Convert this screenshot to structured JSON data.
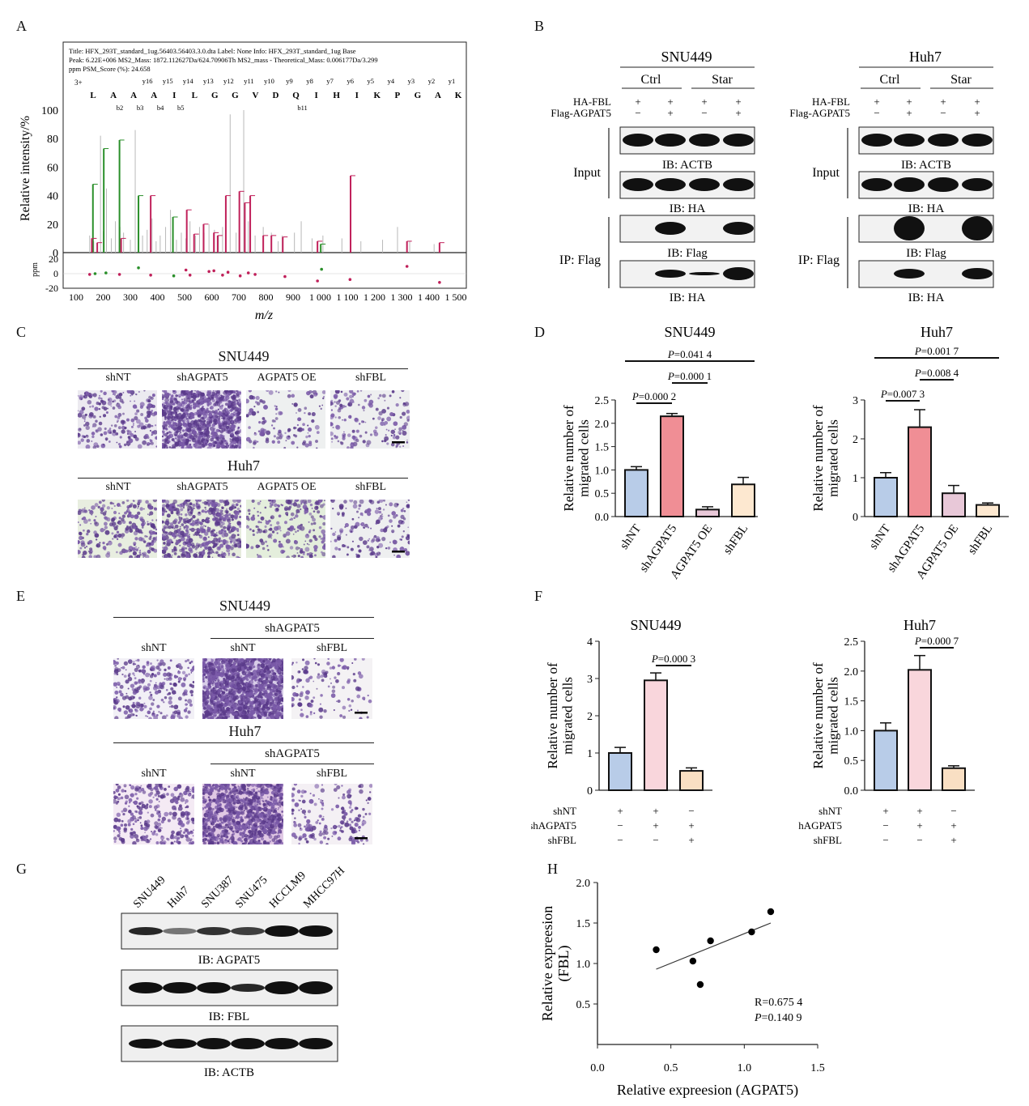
{
  "panels": {
    "A": "A",
    "B": "B",
    "C": "C",
    "D": "D",
    "E": "E",
    "F": "F",
    "G": "G",
    "H": "H"
  },
  "colors": {
    "shNT": "#b8cce8",
    "shAGPAT5": "#f08e95",
    "shAGPAT5_F": "#f9d6dc",
    "AGPAT5OE": "#e8c8d8",
    "shFBL": "#fde8d0",
    "shFBL_F": "#f9dfc3",
    "green": "#2a8f2a",
    "magenta": "#c0205a"
  },
  "A": {
    "info": [
      "Title: HFX_293T_standard_1ug.56403.56403.3.0.dta   Label: None   Info: HFX_293T_standard_1ug   Base",
      "Peak: 6.22E+006   MS2_Mass: 1872.112627Da/624.70906Th   MS2_mass - Theoretical_Mass: 0.006177Da/3.299",
      "ppm    PSM_Score (%): 24.658"
    ],
    "charge": "3+",
    "sequence": [
      "L",
      "A",
      "A",
      "A",
      "I",
      "L",
      "G",
      "G",
      "V",
      "D",
      "Q",
      "I",
      "H",
      "I",
      "K",
      "P",
      "G",
      "A",
      "K"
    ],
    "y_ions": [
      "y16",
      "y15",
      "y14",
      "y13",
      "y12",
      "y11",
      "y10",
      "y9",
      "y8",
      "y7",
      "y6",
      "y5",
      "y4",
      "y3",
      "y2",
      "y1"
    ],
    "b_ions": [
      "b2",
      "b3",
      "b4",
      "b5",
      "b11"
    ],
    "ylabel": "Relative intensity/%",
    "ppm_label": "ppm",
    "xlabel": "m/z",
    "yticks": [
      "0",
      "20",
      "40",
      "60",
      "80",
      "100"
    ],
    "ppm_ticks": [
      "20",
      "0",
      "-20"
    ],
    "xticks": [
      "100",
      "200",
      "300",
      "400",
      "500",
      "600",
      "700",
      "800",
      "900",
      "1 000",
      "1 100",
      "1 200",
      "1 300",
      "1 400",
      "1 500"
    ]
  },
  "B": {
    "left": {
      "title": "SNU449",
      "groups": [
        "Ctrl",
        "Star"
      ],
      "rows": [
        {
          "label": "HA-FBL",
          "vals": [
            "+",
            "+",
            "+",
            "+"
          ]
        },
        {
          "label": "Flag-AGPAT5",
          "vals": [
            "−",
            "+",
            "−",
            "+"
          ]
        }
      ],
      "blots": [
        "IB: ACTB",
        "IB: HA",
        "IB: Flag",
        "IB: HA"
      ],
      "sections": [
        "Input",
        "IP: Flag"
      ]
    },
    "right": {
      "title": "Huh7",
      "groups": [
        "Ctrl",
        "Star"
      ],
      "rows": [
        {
          "label": "HA-FBL",
          "vals": [
            "+",
            "+",
            "+",
            "+"
          ]
        },
        {
          "label": "Flag-AGPAT5",
          "vals": [
            "−",
            "+",
            "−",
            "+"
          ]
        }
      ],
      "blots": [
        "IB: ACTB",
        "IB: HA",
        "IB: Flag",
        "IB: HA"
      ],
      "sections": [
        "Input",
        "IP: Flag"
      ]
    }
  },
  "C": {
    "rows": [
      {
        "cell": "SNU449",
        "conds": [
          "shNT",
          "shAGPAT5",
          "AGPAT5 OE",
          "shFBL"
        ]
      },
      {
        "cell": "Huh7",
        "conds": [
          "shNT",
          "shAGPAT5",
          "AGPAT5 OE",
          "shFBL"
        ]
      }
    ]
  },
  "E": {
    "rows": [
      {
        "cell": "SNU449",
        "group": "shAGPAT5",
        "conds": [
          "shNT",
          "shNT",
          "shFBL"
        ]
      },
      {
        "cell": "Huh7",
        "group": "shAGPAT5",
        "conds": [
          "shNT",
          "shNT",
          "shFBL"
        ]
      }
    ]
  },
  "G": {
    "lanes": [
      "SNU449",
      "Huh7",
      "SNU387",
      "SNU475",
      "HCCLM9",
      "MHCC97H"
    ],
    "blots": [
      "IB: AGPAT5",
      "IB: FBL",
      "IB: ACTB"
    ]
  },
  "chart_data": [
    {
      "type": "bar",
      "panel": "D",
      "title": "SNU449",
      "categories": [
        "shNT",
        "shAGPAT5",
        "AGPAT5 OE",
        "shFBL"
      ],
      "values": [
        1.0,
        2.15,
        0.15,
        0.69
      ],
      "errors": [
        0.07,
        0.06,
        0.06,
        0.15
      ],
      "ylabel": "Relative number of\nmigrated cells",
      "ylim": [
        0,
        2.5
      ],
      "yticks": [
        "0.0",
        "0.5",
        "1.0",
        "1.5",
        "2.0",
        "2.5"
      ],
      "annotations": [
        "P=0.000 2",
        "P=0.000 1",
        "P=0.041 4"
      ]
    },
    {
      "type": "bar",
      "panel": "D",
      "title": "Huh7",
      "categories": [
        "shNT",
        "shAGPAT5",
        "AGPAT5 OE",
        "shFBL"
      ],
      "values": [
        1.0,
        2.3,
        0.6,
        0.3
      ],
      "errors": [
        0.13,
        0.45,
        0.2,
        0.05
      ],
      "ylabel": "Relative number of\nmigrated cells",
      "ylim": [
        0,
        3
      ],
      "yticks": [
        "0",
        "1",
        "2",
        "3"
      ],
      "annotations": [
        "P=0.007 3",
        "P=0.008 4",
        "P=0.001 7"
      ]
    },
    {
      "type": "bar",
      "panel": "F",
      "title": "SNU449",
      "categories": [
        "1",
        "2",
        "3"
      ],
      "values": [
        1.0,
        2.95,
        0.52
      ],
      "errors": [
        0.15,
        0.2,
        0.08
      ],
      "ylabel": "Relative number of\nmigrated cells",
      "ylim": [
        0,
        4
      ],
      "yticks": [
        "0",
        "1",
        "2",
        "3",
        "4"
      ],
      "annotations": [
        "P=0.000 3"
      ],
      "conditions": [
        {
          "label": "shNT",
          "vals": [
            "+",
            "+",
            "−"
          ]
        },
        {
          "label": "shAGPAT5",
          "vals": [
            "−",
            "+",
            "+"
          ]
        },
        {
          "label": "shFBL",
          "vals": [
            "−",
            "−",
            "+"
          ]
        }
      ]
    },
    {
      "type": "bar",
      "panel": "F",
      "title": "Huh7",
      "categories": [
        "1",
        "2",
        "3"
      ],
      "values": [
        1.0,
        2.02,
        0.37
      ],
      "errors": [
        0.13,
        0.24,
        0.04
      ],
      "ylabel": "Relative number of\nmigrated cells",
      "ylim": [
        0,
        2.5
      ],
      "yticks": [
        "0.0",
        "0.5",
        "1.0",
        "1.5",
        "2.0",
        "2.5"
      ],
      "annotations": [
        "P=0.000 7"
      ],
      "conditions": [
        {
          "label": "shNT",
          "vals": [
            "+",
            "+",
            "−"
          ]
        },
        {
          "label": "shAGPAT5",
          "vals": [
            "−",
            "+",
            "+"
          ]
        },
        {
          "label": "shFBL",
          "vals": [
            "−",
            "−",
            "+"
          ]
        }
      ]
    },
    {
      "type": "scatter",
      "panel": "H",
      "x": [
        0.4,
        0.65,
        0.7,
        0.77,
        1.05,
        1.18
      ],
      "y": [
        1.17,
        1.03,
        0.74,
        1.28,
        1.39,
        1.64
      ],
      "xlabel": "Relative expreesion (AGPAT5)",
      "ylabel": "Relative expreesion\n(FBL)",
      "xlim": [
        0,
        1.5
      ],
      "ylim": [
        0,
        2
      ],
      "xticks": [
        "0.0",
        "0.5",
        "1.0",
        "1.5"
      ],
      "yticks": [
        "0.5",
        "1.0",
        "1.5",
        "2.0"
      ],
      "annotations": [
        "R=0.675 4",
        "P=0.140 9"
      ],
      "fit": {
        "x": [
          0.4,
          1.18
        ],
        "y": [
          0.93,
          1.5
        ]
      }
    }
  ]
}
